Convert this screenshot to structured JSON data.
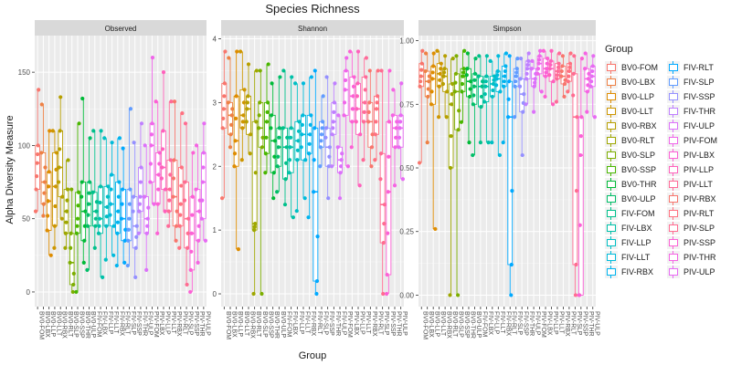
{
  "chart_data": {
    "type": "boxplot",
    "title": "Species Richness",
    "xlabel": "Group",
    "ylabel": "Alpha Diversity Measure",
    "legend_title": "Group",
    "legend_position": "right",
    "grid": true,
    "panel_background": "#ebebeb",
    "strip_background": "#d9d9d9",
    "groups": [
      "BV0-FOM",
      "BV0-LBX",
      "BV0-LLP",
      "BV0-LLT",
      "BV0-RBX",
      "BV0-RLT",
      "BV0-SLP",
      "BV0-SSP",
      "BV0-THR",
      "BV0-ULP",
      "FIV-FOM",
      "FIV-LBX",
      "FIV-LLP",
      "FIV-LLT",
      "FIV-RBX",
      "FIV-RLT",
      "FIV-SLP",
      "FIV-SSP",
      "FIV-THR",
      "FIV-ULP",
      "PIV-FOM",
      "PIV-LBX",
      "PIV-LLP",
      "PIV-LLT",
      "PIV-RBX",
      "PIV-RLT",
      "PIV-SLP",
      "PIV-SSP",
      "PIV-THR",
      "PIV-ULP"
    ],
    "colors": [
      "#F8766D",
      "#EE8044",
      "#DE8C00",
      "#CD9600",
      "#B79F00",
      "#9EA700",
      "#7CAE00",
      "#49B600",
      "#00BA38",
      "#00BE67",
      "#00C08B",
      "#00C1A9",
      "#00BFC4",
      "#00BBDB",
      "#00B4EF",
      "#00A9FF",
      "#619CFF",
      "#9590FF",
      "#BF80FF",
      "#DC71FA",
      "#F066EA",
      "#FC61D5",
      "#FF61BC",
      "#FF6A98",
      "#F8766D",
      "#FF7180",
      "#FF6C91",
      "#FC61D5",
      "#F564E3",
      "#E76BF3"
    ],
    "panels": [
      {
        "name": "Observed",
        "ylim": [
          -10,
          175
        ],
        "yticks": [
          0,
          50,
          100,
          150
        ],
        "boxes": [
          [
            55,
            70,
            88,
            100,
            138
          ],
          [
            52,
            60,
            75,
            95,
            128
          ],
          [
            25,
            42,
            62,
            82,
            110
          ],
          [
            30,
            45,
            72,
            95,
            110
          ],
          [
            50,
            65,
            85,
            110,
            133
          ],
          [
            30,
            40,
            55,
            70,
            90
          ],
          [
            0,
            5,
            20,
            40,
            70
          ],
          [
            0,
            40,
            50,
            68,
            115
          ],
          [
            20,
            35,
            55,
            75,
            132
          ],
          [
            15,
            45,
            60,
            75,
            105
          ],
          [
            30,
            45,
            55,
            68,
            110
          ],
          [
            10,
            40,
            50,
            72,
            110
          ],
          [
            22,
            45,
            58,
            72,
            105
          ],
          [
            25,
            45,
            60,
            80,
            102
          ],
          [
            18,
            40,
            55,
            75,
            105
          ],
          [
            20,
            35,
            50,
            70,
            98
          ],
          [
            18,
            35,
            50,
            70,
            125
          ],
          [
            10,
            30,
            45,
            65,
            102
          ],
          [
            40,
            55,
            65,
            85,
            115
          ],
          [
            15,
            40,
            50,
            65,
            100
          ],
          [
            60,
            75,
            100,
            115,
            160
          ],
          [
            40,
            60,
            80,
            95,
            130
          ],
          [
            55,
            70,
            85,
            110,
            150
          ],
          [
            45,
            55,
            70,
            90,
            130
          ],
          [
            35,
            45,
            65,
            90,
            130
          ],
          [
            30,
            45,
            60,
            85,
            122
          ],
          [
            5,
            30,
            50,
            75,
            115
          ],
          [
            0,
            15,
            40,
            65,
            95
          ],
          [
            20,
            35,
            55,
            70,
            100
          ],
          [
            35,
            50,
            75,
            95,
            115
          ]
        ]
      },
      {
        "name": "Shannon",
        "ylim": [
          -0.2,
          4.05
        ],
        "yticks": [
          0,
          1,
          2,
          3,
          4
        ],
        "boxes": [
          [
            1.5,
            2.6,
            2.9,
            3.3,
            3.8
          ],
          [
            2.3,
            2.5,
            2.8,
            3.0,
            3.7
          ],
          [
            0.7,
            2.0,
            2.4,
            3.1,
            3.8
          ],
          [
            2.1,
            2.6,
            2.8,
            3.2,
            3.8
          ],
          [
            2.2,
            2.5,
            2.9,
            3.1,
            3.6
          ],
          [
            0,
            1.0,
            1.1,
            2.7,
            3.5
          ],
          [
            0,
            2.3,
            2.6,
            3.0,
            3.5
          ],
          [
            1.9,
            2.2,
            2.7,
            3.0,
            3.6
          ],
          [
            1.5,
            1.9,
            2.4,
            2.8,
            3.3
          ],
          [
            1.6,
            2.0,
            2.3,
            2.6,
            3.4
          ],
          [
            1.4,
            1.8,
            2.3,
            2.6,
            3.5
          ],
          [
            1.2,
            1.9,
            2.3,
            2.6,
            3.4
          ],
          [
            1.3,
            2.1,
            2.4,
            2.7,
            3.3
          ],
          [
            1.5,
            2.1,
            2.5,
            2.8,
            3.3
          ],
          [
            1.2,
            2.2,
            2.5,
            2.8,
            3.4
          ],
          [
            0,
            0.2,
            1.6,
            2.6,
            3.5
          ],
          [
            2.0,
            2.3,
            2.5,
            2.7,
            3.1
          ],
          [
            1.5,
            2.0,
            2.3,
            2.6,
            3.4
          ],
          [
            2.0,
            2.5,
            2.7,
            3.0,
            3.3
          ],
          [
            1.5,
            1.9,
            2.1,
            2.3,
            2.8
          ],
          [
            2.0,
            2.8,
            3.2,
            3.5,
            3.7
          ],
          [
            2.3,
            2.7,
            3.1,
            3.4,
            3.8
          ],
          [
            1.7,
            2.5,
            2.9,
            3.3,
            3.8
          ],
          [
            2.1,
            2.7,
            3.0,
            3.4,
            3.7
          ],
          [
            2.0,
            2.3,
            2.7,
            3.0,
            3.5
          ],
          [
            2.1,
            2.5,
            2.9,
            3.1,
            3.5
          ],
          [
            0,
            0.8,
            1.4,
            2.2,
            3.5
          ],
          [
            0,
            0.3,
            1.6,
            2.7,
            3.5
          ],
          [
            1.7,
            2.3,
            2.6,
            2.8,
            3.2
          ],
          [
            1.8,
            2.3,
            2.6,
            2.8,
            3.3
          ]
        ]
      },
      {
        "name": "Simpson",
        "ylim": [
          -0.045,
          1.02
        ],
        "yticks": [
          0.0,
          0.25,
          0.5,
          0.75,
          1.0
        ],
        "boxes": [
          [
            0.52,
            0.82,
            0.86,
            0.91,
            0.96
          ],
          [
            0.6,
            0.78,
            0.84,
            0.88,
            0.95
          ],
          [
            0.26,
            0.75,
            0.85,
            0.9,
            0.95
          ],
          [
            0.7,
            0.82,
            0.87,
            0.91,
            0.96
          ],
          [
            0.7,
            0.8,
            0.86,
            0.89,
            0.94
          ],
          [
            0,
            0.5,
            0.75,
            0.83,
            0.93
          ],
          [
            0,
            0.65,
            0.8,
            0.87,
            0.94
          ],
          [
            0.68,
            0.8,
            0.86,
            0.89,
            0.96
          ],
          [
            0.6,
            0.78,
            0.84,
            0.89,
            0.95
          ],
          [
            0.55,
            0.75,
            0.82,
            0.87,
            0.93
          ],
          [
            0.6,
            0.74,
            0.82,
            0.86,
            0.94
          ],
          [
            0.6,
            0.76,
            0.82,
            0.86,
            0.94
          ],
          [
            0.6,
            0.78,
            0.83,
            0.86,
            0.92
          ],
          [
            0.55,
            0.8,
            0.85,
            0.88,
            0.94
          ],
          [
            0.6,
            0.82,
            0.86,
            0.9,
            0.95
          ],
          [
            0,
            0.12,
            0.7,
            0.84,
            0.94
          ],
          [
            0.7,
            0.82,
            0.86,
            0.89,
            0.93
          ],
          [
            0.55,
            0.72,
            0.79,
            0.85,
            0.93
          ],
          [
            0.75,
            0.85,
            0.89,
            0.92,
            0.95
          ],
          [
            0.72,
            0.82,
            0.85,
            0.89,
            0.92
          ],
          [
            0.8,
            0.87,
            0.91,
            0.94,
            0.96
          ],
          [
            0.78,
            0.86,
            0.89,
            0.93,
            0.96
          ],
          [
            0.75,
            0.84,
            0.89,
            0.92,
            0.96
          ],
          [
            0.76,
            0.85,
            0.88,
            0.91,
            0.95
          ],
          [
            0.78,
            0.83,
            0.86,
            0.9,
            0.94
          ],
          [
            0.8,
            0.84,
            0.88,
            0.91,
            0.95
          ],
          [
            0,
            0.12,
            0.7,
            0.87,
            0.94
          ],
          [
            0,
            0.0,
            0.55,
            0.7,
            0.93
          ],
          [
            0.72,
            0.8,
            0.85,
            0.89,
            0.95
          ],
          [
            0.7,
            0.82,
            0.86,
            0.9,
            0.94
          ]
        ]
      }
    ]
  }
}
